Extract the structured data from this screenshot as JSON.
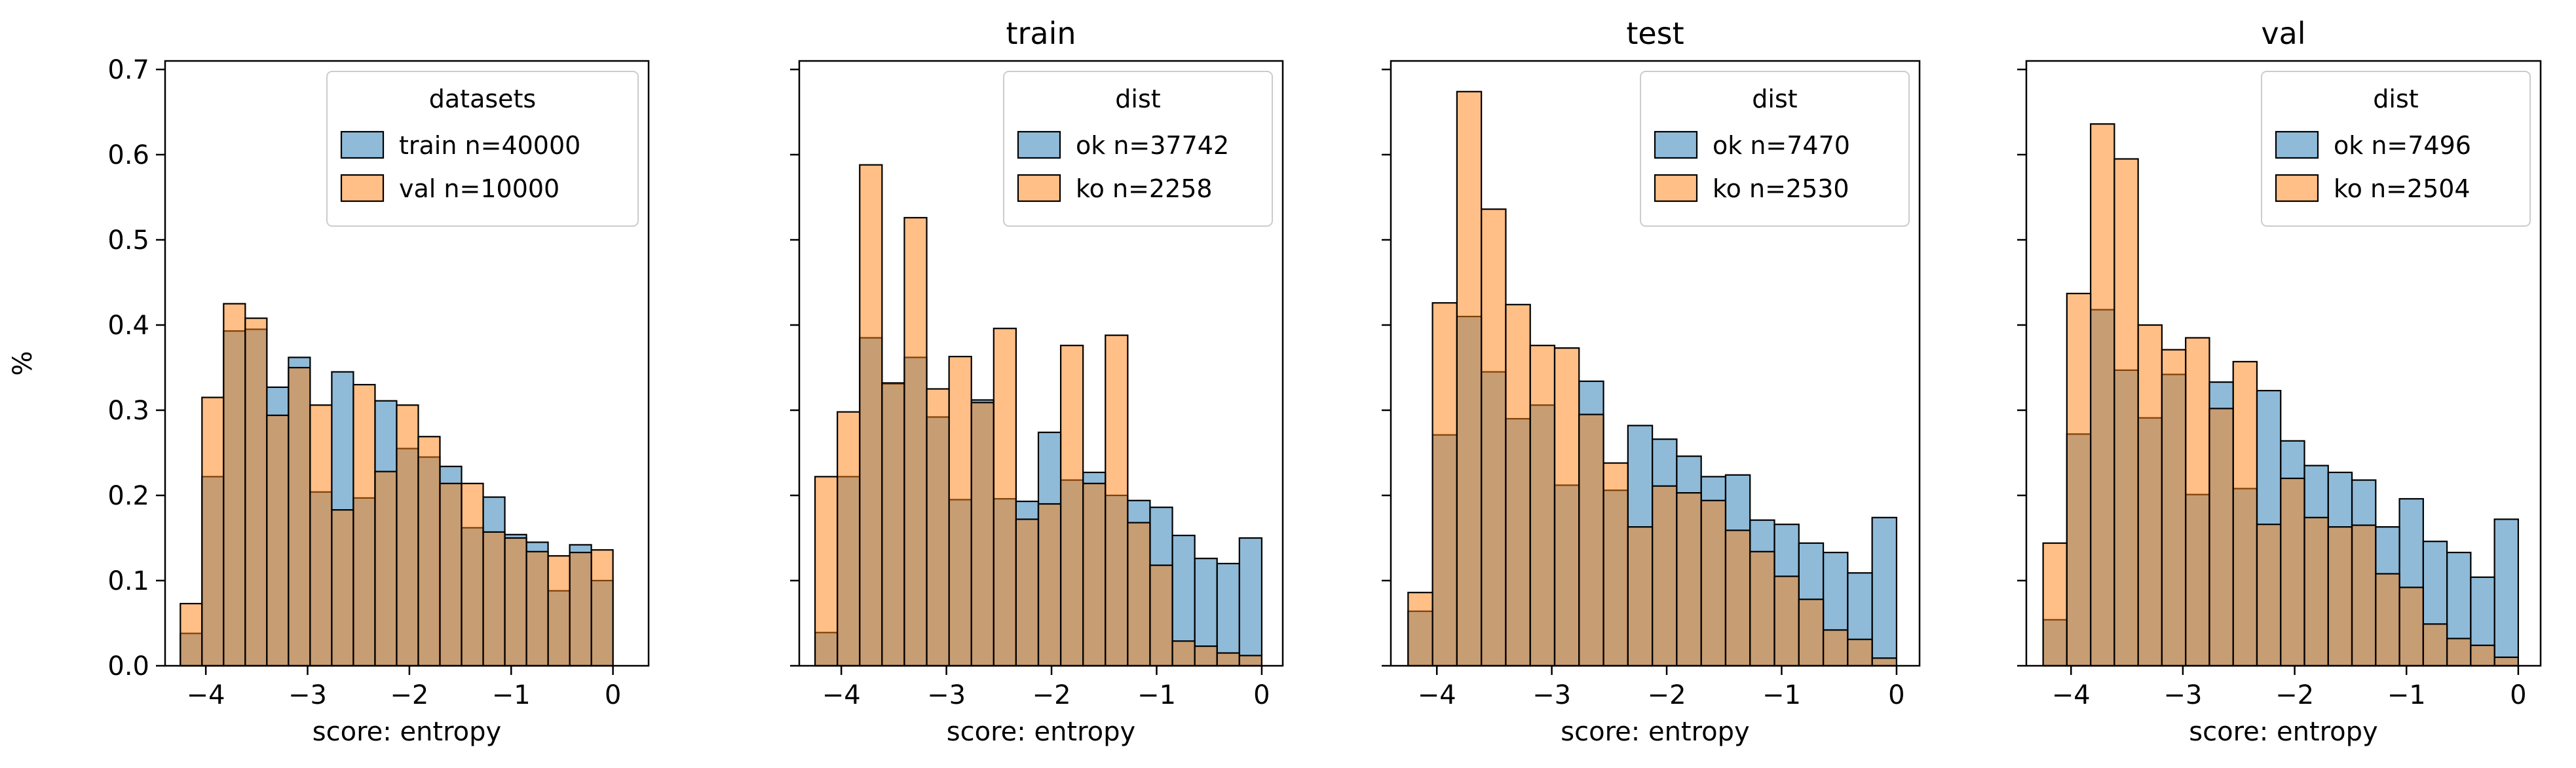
{
  "colors": {
    "blue": "#1f77b4",
    "orange": "#ff7f0e",
    "axis": "#000000",
    "edge": "#000000",
    "legend_frame": "#cccccc"
  },
  "chart_data": [
    {
      "type": "bar",
      "title": "",
      "xlabel": "score: entropy",
      "ylabel": "%",
      "xlim": [
        -4.4,
        0.35
      ],
      "ylim": [
        0,
        0.71
      ],
      "xticks": [
        -4,
        -3,
        -2,
        -1,
        0
      ],
      "xtick_labels": [
        "−4",
        "−3",
        "−2",
        "−1",
        "0"
      ],
      "yticks": [
        0,
        0.1,
        0.2,
        0.3,
        0.4,
        0.5,
        0.6,
        0.7
      ],
      "ytick_labels": [
        "0.0",
        "0.1",
        "0.2",
        "0.3",
        "0.4",
        "0.5",
        "0.6",
        "0.7"
      ],
      "show_ytick_labels": true,
      "bins": {
        "start": -4.25,
        "width": 0.2125,
        "count": 20
      },
      "legend": {
        "title": "datasets",
        "placement": "top-right"
      },
      "series": [
        {
          "name": "train n=40000",
          "color": "blue",
          "values": [
            0.038,
            0.222,
            0.393,
            0.395,
            0.327,
            0.362,
            0.204,
            0.345,
            0.197,
            0.311,
            0.255,
            0.245,
            0.234,
            0.162,
            0.198,
            0.154,
            0.145,
            0.088,
            0.142,
            0.1
          ]
        },
        {
          "name": "val n=10000",
          "color": "orange",
          "values": [
            0.073,
            0.315,
            0.425,
            0.408,
            0.294,
            0.35,
            0.306,
            0.183,
            0.33,
            0.228,
            0.306,
            0.269,
            0.214,
            0.214,
            0.157,
            0.15,
            0.134,
            0.129,
            0.133,
            0.136
          ]
        }
      ]
    },
    {
      "type": "bar",
      "title": "train",
      "xlabel": "score: entropy",
      "ylabel": "",
      "xlim": [
        -4.4,
        0.2
      ],
      "ylim": [
        0,
        0.71
      ],
      "xticks": [
        -4,
        -3,
        -2,
        -1,
        0
      ],
      "xtick_labels": [
        "−4",
        "−3",
        "−2",
        "−1",
        "0"
      ],
      "yticks": [
        0,
        0.1,
        0.2,
        0.3,
        0.4,
        0.5,
        0.6,
        0.7
      ],
      "ytick_labels": [],
      "show_ytick_labels": false,
      "bins": {
        "start": -4.25,
        "width": 0.2125,
        "count": 20
      },
      "legend": {
        "title": "dist",
        "placement": "top-right"
      },
      "series": [
        {
          "name": "ok n=37742",
          "color": "blue",
          "values": [
            0.039,
            0.222,
            0.385,
            0.331,
            0.362,
            0.292,
            0.195,
            0.312,
            0.196,
            0.193,
            0.274,
            0.218,
            0.227,
            0.2,
            0.194,
            0.186,
            0.153,
            0.126,
            0.12,
            0.15
          ]
        },
        {
          "name": "ko n=2258",
          "color": "orange",
          "values": [
            0.222,
            0.298,
            0.588,
            0.332,
            0.526,
            0.325,
            0.363,
            0.309,
            0.396,
            0.172,
            0.19,
            0.376,
            0.214,
            0.388,
            0.168,
            0.118,
            0.029,
            0.023,
            0.015,
            0.012
          ]
        }
      ]
    },
    {
      "type": "bar",
      "title": "test",
      "xlabel": "score: entropy",
      "ylabel": "",
      "xlim": [
        -4.4,
        0.2
      ],
      "ylim": [
        0,
        0.71
      ],
      "xticks": [
        -4,
        -3,
        -2,
        -1,
        0
      ],
      "xtick_labels": [
        "−4",
        "−3",
        "−2",
        "−1",
        "0"
      ],
      "yticks": [
        0,
        0.1,
        0.2,
        0.3,
        0.4,
        0.5,
        0.6,
        0.7
      ],
      "ytick_labels": [],
      "show_ytick_labels": false,
      "bins": {
        "start": -4.25,
        "width": 0.2125,
        "count": 20
      },
      "legend": {
        "title": "dist",
        "placement": "top-right"
      },
      "series": [
        {
          "name": "ok n=7470",
          "color": "blue",
          "values": [
            0.064,
            0.271,
            0.41,
            0.345,
            0.29,
            0.306,
            0.212,
            0.334,
            0.206,
            0.282,
            0.266,
            0.246,
            0.222,
            0.224,
            0.171,
            0.166,
            0.144,
            0.133,
            0.109,
            0.174
          ]
        },
        {
          "name": "ko n=2530",
          "color": "orange",
          "values": [
            0.086,
            0.426,
            0.674,
            0.536,
            0.424,
            0.376,
            0.373,
            0.295,
            0.238,
            0.163,
            0.211,
            0.203,
            0.194,
            0.159,
            0.134,
            0.105,
            0.078,
            0.042,
            0.031,
            0.009
          ]
        }
      ]
    },
    {
      "type": "bar",
      "title": "val",
      "xlabel": "score: entropy",
      "ylabel": "",
      "xlim": [
        -4.4,
        0.2
      ],
      "ylim": [
        0,
        0.71
      ],
      "xticks": [
        -4,
        -3,
        -2,
        -1,
        0
      ],
      "xtick_labels": [
        "−4",
        "−3",
        "−2",
        "−1",
        "0"
      ],
      "yticks": [
        0,
        0.1,
        0.2,
        0.3,
        0.4,
        0.5,
        0.6,
        0.7
      ],
      "ytick_labels": [],
      "show_ytick_labels": false,
      "bins": {
        "start": -4.25,
        "width": 0.2125,
        "count": 20
      },
      "legend": {
        "title": "dist",
        "placement": "top-right"
      },
      "series": [
        {
          "name": "ok n=7496",
          "color": "blue",
          "values": [
            0.054,
            0.272,
            0.418,
            0.347,
            0.291,
            0.342,
            0.201,
            0.333,
            0.208,
            0.323,
            0.264,
            0.235,
            0.227,
            0.218,
            0.163,
            0.196,
            0.146,
            0.133,
            0.104,
            0.172
          ]
        },
        {
          "name": "ko n=2504",
          "color": "orange",
          "values": [
            0.144,
            0.437,
            0.636,
            0.595,
            0.4,
            0.371,
            0.385,
            0.302,
            0.357,
            0.166,
            0.22,
            0.174,
            0.163,
            0.165,
            0.108,
            0.092,
            0.049,
            0.032,
            0.024,
            0.01
          ]
        }
      ]
    }
  ]
}
